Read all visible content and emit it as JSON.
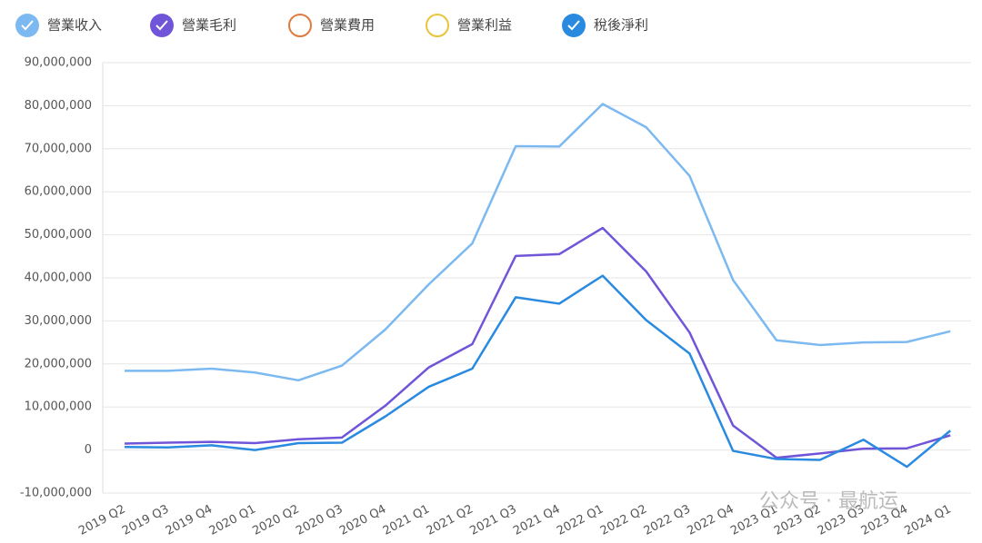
{
  "chart_data": {
    "type": "line",
    "categories": [
      "2019 Q2",
      "2019 Q3",
      "2019 Q4",
      "2020 Q1",
      "2020 Q2",
      "2020 Q3",
      "2020 Q4",
      "2021 Q1",
      "2021 Q2",
      "2021 Q3",
      "2021 Q4",
      "2022 Q1",
      "2022 Q2",
      "2022 Q3",
      "2022 Q4",
      "2023 Q1",
      "2023 Q2",
      "2023 Q3",
      "2023 Q4",
      "2024 Q1"
    ],
    "series": [
      {
        "name": "營業收入",
        "color": "#7cb9f0",
        "visible": true,
        "values": [
          18400000,
          18400000,
          18900000,
          18000000,
          16200000,
          19600000,
          28000000,
          38500000,
          48000000,
          70600000,
          70500000,
          80400000,
          75000000,
          63700000,
          39500000,
          25500000,
          24400000,
          25000000,
          25100000,
          27600000
        ]
      },
      {
        "name": "營業毛利",
        "color": "#7155d8",
        "visible": true,
        "values": [
          1500000,
          1700000,
          1900000,
          1600000,
          2500000,
          2900000,
          10300000,
          19200000,
          24600000,
          45100000,
          45500000,
          51600000,
          41500000,
          27300000,
          5700000,
          -1800000,
          -800000,
          300000,
          400000,
          3400000
        ]
      },
      {
        "name": "營業費用",
        "color": "#e07b3e",
        "visible": false
      },
      {
        "name": "營業利益",
        "color": "#e8c53a",
        "visible": false
      },
      {
        "name": "稅後淨利",
        "color": "#2a8ae0",
        "visible": true,
        "values": [
          700000,
          600000,
          1100000,
          0,
          1600000,
          1700000,
          7800000,
          14700000,
          18900000,
          35500000,
          34000000,
          40500000,
          30200000,
          22400000,
          -200000,
          -2100000,
          -2300000,
          2400000,
          -3900000,
          4500000
        ]
      }
    ],
    "ylim": [
      -10000000,
      90000000
    ],
    "yticks": [
      {
        "value": -10000000,
        "label": "-10,000,000"
      },
      0,
      {
        "value": 10000000,
        "label": "10,000,000"
      },
      {
        "value": 20000000,
        "label": "20,000,000"
      },
      {
        "value": 30000000,
        "label": "30,000,000"
      },
      {
        "value": 40000000,
        "label": "40,000,000"
      },
      {
        "value": 50000000,
        "label": "50,000,000"
      },
      {
        "value": 60000000,
        "label": "60,000,000"
      },
      {
        "value": 70000000,
        "label": "70,000,000"
      },
      {
        "value": 80000000,
        "label": "80,000,000"
      },
      {
        "value": 90000000,
        "label": "90,000,000"
      }
    ],
    "grid": true,
    "annotations": [
      "公众号 · 最航运"
    ]
  }
}
